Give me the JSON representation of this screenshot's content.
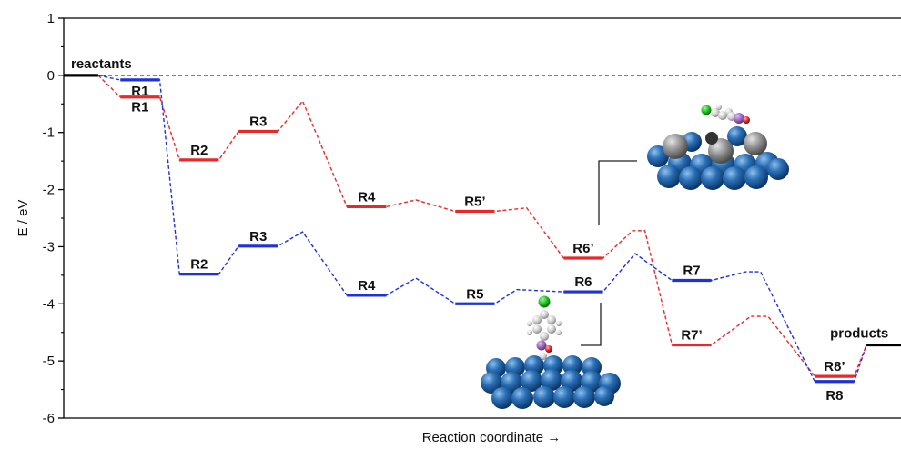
{
  "chart_data": {
    "type": "line",
    "title": "",
    "xlabel": "Reaction coordinate →",
    "ylabel": "E / eV",
    "ylim": [
      -6,
      1
    ],
    "yticks": [
      -6,
      -5,
      -4,
      -3,
      -2,
      -1,
      0,
      1
    ],
    "grid": false,
    "reference_line": 0,
    "colors": {
      "red": "#e8292a",
      "blue": "#1f32d6",
      "black": "#000000",
      "ref": "#000000"
    },
    "endpoints": [
      {
        "label": "reactants",
        "x": [
          0,
          0.7
        ],
        "y": 0
      },
      {
        "label": "products",
        "x": [
          16.3,
          17.0
        ],
        "y": -4.72
      }
    ],
    "series": [
      {
        "key": "red",
        "states": [
          {
            "label": "R1",
            "x": [
              1.15,
              1.95
            ],
            "y": -0.38
          },
          {
            "label": "R2",
            "x": [
              2.35,
              3.15
            ],
            "y": -1.48
          },
          {
            "label": "R3",
            "x": [
              3.55,
              4.35
            ],
            "y": -0.98
          },
          {
            "label": "R4",
            "x": [
              5.75,
              6.55
            ],
            "y": -2.3
          },
          {
            "label": "R5’",
            "x": [
              7.95,
              8.75
            ],
            "y": -2.38
          },
          {
            "label": "R6’",
            "x": [
              10.15,
              10.95
            ],
            "y": -3.2
          },
          {
            "label": "R7’",
            "x": [
              12.35,
              13.15
            ],
            "y": -4.72
          },
          {
            "label": "R8’",
            "x": [
              15.25,
              16.05
            ],
            "y": -5.27
          }
        ],
        "transitions": [
          {
            "x": 4.85,
            "y": -0.45
          },
          {
            "x": 7.15,
            "y": -2.18
          },
          {
            "x": 9.4,
            "y": -2.32
          },
          {
            "x": 11.55,
            "y": -2.72
          },
          {
            "x": 14.15,
            "y": -4.22
          }
        ],
        "path": [
          [
            0.7,
            0
          ],
          [
            1.15,
            -0.38
          ],
          [
            1.95,
            -0.38
          ],
          [
            2.35,
            -1.48
          ],
          [
            3.15,
            -1.48
          ],
          [
            3.55,
            -0.98
          ],
          [
            4.35,
            -0.98
          ],
          [
            4.85,
            -0.45
          ],
          [
            5.75,
            -2.3
          ],
          [
            6.55,
            -2.3
          ],
          [
            7.15,
            -2.18
          ],
          [
            7.95,
            -2.38
          ],
          [
            8.75,
            -2.38
          ],
          [
            9.4,
            -2.32
          ],
          [
            10.15,
            -3.2
          ],
          [
            10.95,
            -3.2
          ],
          [
            11.55,
            -2.72
          ],
          [
            11.8,
            -2.72
          ],
          [
            12.35,
            -4.72
          ],
          [
            13.15,
            -4.72
          ],
          [
            13.95,
            -4.22
          ],
          [
            14.3,
            -4.22
          ],
          [
            15.25,
            -5.27
          ],
          [
            16.05,
            -5.27
          ],
          [
            16.3,
            -4.72
          ]
        ]
      },
      {
        "key": "blue",
        "states": [
          {
            "label": "R1",
            "x": [
              1.15,
              1.95
            ],
            "y": -0.08
          },
          {
            "label": "R2",
            "x": [
              2.35,
              3.15
            ],
            "y": -3.48
          },
          {
            "label": "R3",
            "x": [
              3.55,
              4.35
            ],
            "y": -2.99
          },
          {
            "label": "R4",
            "x": [
              5.75,
              6.55
            ],
            "y": -3.85
          },
          {
            "label": "R5",
            "x": [
              7.95,
              8.75
            ],
            "y": -4.0
          },
          {
            "label": "R6",
            "x": [
              10.15,
              10.95
            ],
            "y": -3.79
          },
          {
            "label": "R7",
            "x": [
              12.35,
              13.15
            ],
            "y": -3.59
          },
          {
            "label": "R8",
            "x": [
              15.25,
              16.05
            ],
            "y": -5.36
          }
        ],
        "path": [
          [
            0.7,
            0
          ],
          [
            1.15,
            -0.08
          ],
          [
            1.95,
            -0.08
          ],
          [
            2.35,
            -3.48
          ],
          [
            3.15,
            -3.48
          ],
          [
            3.55,
            -2.99
          ],
          [
            4.35,
            -2.99
          ],
          [
            4.85,
            -2.74
          ],
          [
            5.75,
            -3.85
          ],
          [
            6.55,
            -3.85
          ],
          [
            7.15,
            -3.55
          ],
          [
            7.95,
            -4.0
          ],
          [
            8.75,
            -4.0
          ],
          [
            9.2,
            -3.75
          ],
          [
            10.15,
            -3.79
          ],
          [
            10.95,
            -3.79
          ],
          [
            11.6,
            -3.12
          ],
          [
            12.35,
            -3.59
          ],
          [
            13.15,
            -3.59
          ],
          [
            13.85,
            -3.44
          ],
          [
            14.15,
            -3.44
          ],
          [
            15.25,
            -5.36
          ],
          [
            16.05,
            -5.36
          ],
          [
            16.3,
            -4.72
          ]
        ]
      }
    ],
    "insets": [
      {
        "name": "tilted-molecule-on-surface",
        "pointer_to": "R6’"
      },
      {
        "name": "upright-molecule-on-surface",
        "pointer_to": "R6"
      }
    ]
  }
}
